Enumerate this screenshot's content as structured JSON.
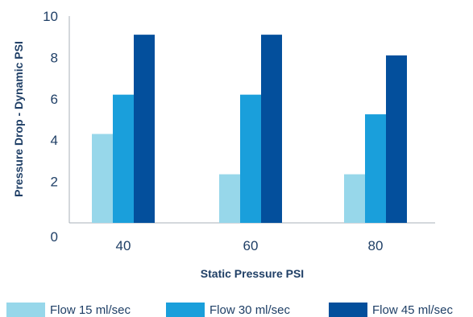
{
  "chart_data": {
    "type": "bar",
    "categories": [
      "40",
      "60",
      "80"
    ],
    "series": [
      {
        "name": "Flow 15 ml/sec",
        "values": [
          4.3,
          2.35,
          2.35
        ],
        "color": "#97d7ea"
      },
      {
        "name": "Flow 30 ml/sec",
        "values": [
          6.2,
          6.2,
          5.25
        ],
        "color": "#1a9fdb"
      },
      {
        "name": "Flow 45 ml/sec",
        "values": [
          9.1,
          9.1,
          8.1
        ],
        "color": "#034f9c"
      }
    ],
    "xlabel": "Static Pressure PSI",
    "ylabel": "Pressure Drop - Dynamic PSI",
    "ylim": [
      0,
      10
    ],
    "yticks": [
      "0",
      "2",
      "4",
      "6",
      "8",
      "10"
    ],
    "grid": false,
    "legend": "bottom",
    "axis_color": "#1f3f66"
  }
}
